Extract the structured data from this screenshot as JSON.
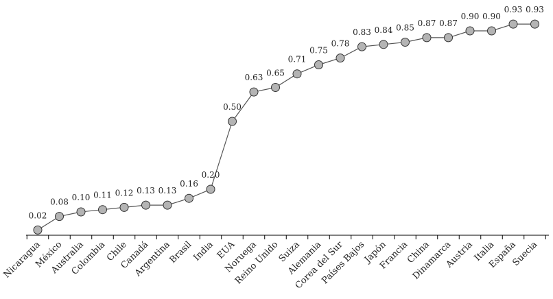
{
  "chart_data": {
    "type": "line",
    "title": "",
    "xlabel": "",
    "ylabel": "",
    "ylim": [
      0,
      1
    ],
    "grid": false,
    "categories": [
      "Nicaragua",
      "México",
      "Australia",
      "Colombia",
      "Chile",
      "Canadá",
      "Argentina",
      "Brasil",
      "India",
      "EUA",
      "Noruega",
      "Reino Unido",
      "Suiza",
      "Alemania",
      "Corea del Sur",
      "Países Bajos",
      "Japón",
      "Francia",
      "China",
      "Dinamarca",
      "Austria",
      "Italia",
      "España",
      "Suecia"
    ],
    "values": [
      0.02,
      0.08,
      0.1,
      0.11,
      0.12,
      0.13,
      0.13,
      0.16,
      0.2,
      0.5,
      0.63,
      0.65,
      0.71,
      0.75,
      0.78,
      0.83,
      0.84,
      0.85,
      0.87,
      0.87,
      0.9,
      0.9,
      0.93,
      0.93
    ],
    "labels": [
      "0.02",
      "0.08",
      "0.10",
      "0.11",
      "0.12",
      "0.13",
      "0.13",
      "0.16",
      "0.20",
      "0.50",
      "0.63",
      "0.65",
      "0.71",
      "0.75",
      "0.78",
      "0.83",
      "0.84",
      "0.85",
      "0.87",
      "0.87",
      "0.90",
      "0.90",
      "0.93",
      "0.93"
    ],
    "colors": {
      "point_fill": "#b4b4b4",
      "point_stroke": "#333333",
      "line": "#555555"
    }
  }
}
